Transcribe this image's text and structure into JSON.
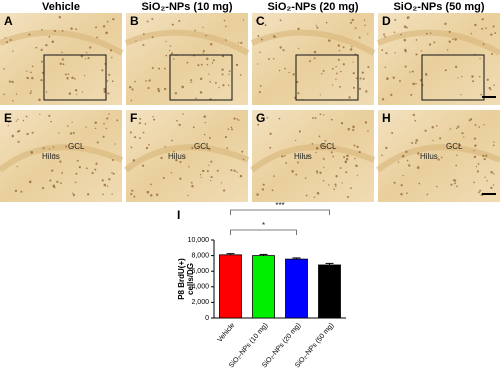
{
  "panels": [
    {
      "header": "Vehicle",
      "top_label": "A",
      "bottom_label": "E",
      "bottom_annotations": [
        "Hilus",
        "GCL"
      ]
    },
    {
      "header": "SiO₂-NPs (10 mg)",
      "top_label": "B",
      "bottom_label": "F",
      "bottom_annotations": [
        "Hilus",
        "GCL"
      ]
    },
    {
      "header": "SiO₂-NPs (20 mg)",
      "top_label": "C",
      "bottom_label": "G",
      "bottom_annotations": [
        "Hilus",
        "GCL"
      ]
    },
    {
      "header": "SiO₂-NPs (50 mg)",
      "top_label": "D",
      "bottom_label": "H",
      "bottom_annotations": [
        "Hilus",
        "GCL"
      ]
    }
  ],
  "chart_data": {
    "type": "bar",
    "panel_label": "I",
    "ylabel": [
      "P8 BrdU(+)",
      "cells/DG"
    ],
    "categories": [
      "Vehicle",
      "SiO₂-NPs (10 mg)",
      "SiO₂-NPs (20 mg)",
      "SiO₂-NPs (50 mg)"
    ],
    "values": [
      8100,
      8000,
      7550,
      6800
    ],
    "errors": [
      150,
      150,
      150,
      200
    ],
    "colors": [
      "#ff0000",
      "#00ee00",
      "#0000ff",
      "#000000"
    ],
    "ylim": [
      0,
      10000
    ],
    "yticks": [
      0,
      {
        "value": 2000,
        "label": "2,000"
      },
      {
        "value": 4000,
        "label": "4,000"
      },
      {
        "value": 6000,
        "label": "6,000"
      },
      {
        "value": 8000,
        "label": "8,000"
      },
      {
        "value": 10000,
        "label": "10,000"
      }
    ],
    "significance": [
      {
        "between": [
          "Vehicle",
          "SiO₂-NPs (20 mg)"
        ],
        "label": "*"
      },
      {
        "between": [
          "Vehicle",
          "SiO₂-NPs (50 mg)"
        ],
        "label": "***"
      }
    ]
  }
}
